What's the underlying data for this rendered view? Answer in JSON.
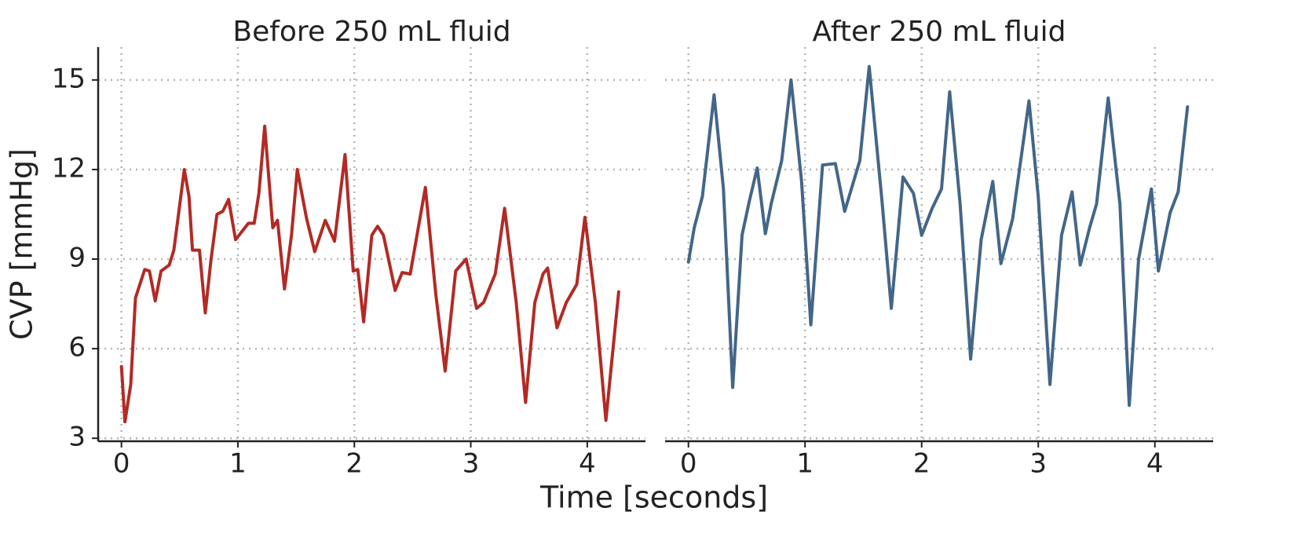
{
  "xlabel": "Time [seconds]",
  "ylabel": "CVP [mmHg]",
  "chart_data": [
    {
      "type": "line",
      "title": "Before 250 mL fluid",
      "color": "#b22a25",
      "grid": true,
      "show_yticklabels": true,
      "xlim": [
        -0.2,
        4.5
      ],
      "ylim": [
        2.9,
        16.1
      ],
      "xticks": [
        0,
        1,
        2,
        3,
        4
      ],
      "yticks": [
        3,
        6,
        9,
        12,
        15
      ],
      "x": [
        0,
        0.03,
        0.08,
        0.12,
        0.2,
        0.24,
        0.29,
        0.34,
        0.41,
        0.45,
        0.54,
        0.58,
        0.61,
        0.67,
        0.72,
        0.77,
        0.82,
        0.87,
        0.92,
        0.98,
        1.09,
        1.14,
        1.18,
        1.23,
        1.3,
        1.34,
        1.4,
        1.46,
        1.51,
        1.59,
        1.66,
        1.75,
        1.83,
        1.92,
        1.99,
        2.03,
        2.08,
        2.15,
        2.2,
        2.25,
        2.35,
        2.41,
        2.48,
        2.61,
        2.7,
        2.78,
        2.87,
        2.96,
        3.05,
        3.11,
        3.21,
        3.29,
        3.39,
        3.47,
        3.55,
        3.62,
        3.66,
        3.74,
        3.82,
        3.91,
        3.98,
        4.07,
        4.16,
        4.27
      ],
      "values": [
        5.4,
        3.55,
        4.8,
        7.7,
        8.65,
        8.6,
        7.6,
        8.6,
        8.8,
        9.3,
        12.0,
        11.1,
        9.3,
        9.3,
        7.2,
        9.0,
        10.5,
        10.6,
        11.0,
        9.65,
        10.2,
        10.2,
        11.2,
        13.45,
        10.05,
        10.3,
        8.0,
        9.8,
        12.0,
        10.35,
        9.25,
        10.3,
        9.6,
        12.5,
        8.6,
        8.65,
        6.9,
        9.8,
        10.1,
        9.8,
        7.95,
        8.55,
        8.5,
        11.4,
        7.8,
        5.25,
        8.6,
        9.0,
        7.35,
        7.55,
        8.5,
        10.7,
        7.55,
        4.2,
        7.55,
        8.5,
        8.7,
        6.7,
        7.55,
        8.15,
        10.4,
        7.55,
        3.6,
        7.9
      ]
    },
    {
      "type": "line",
      "title": "After 250 mL fluid",
      "color": "#436688",
      "grid": true,
      "show_yticklabels": false,
      "xlim": [
        -0.2,
        4.5
      ],
      "ylim": [
        2.9,
        16.1
      ],
      "xticks": [
        0,
        1,
        2,
        3,
        4
      ],
      "yticks": [
        3,
        6,
        9,
        12,
        15
      ],
      "x": [
        0,
        0.05,
        0.12,
        0.22,
        0.3,
        0.38,
        0.46,
        0.52,
        0.59,
        0.66,
        0.71,
        0.8,
        0.88,
        0.97,
        1.05,
        1.15,
        1.26,
        1.34,
        1.47,
        1.55,
        1.66,
        1.74,
        1.84,
        1.93,
        2.0,
        2.09,
        2.17,
        2.24,
        2.33,
        2.42,
        2.51,
        2.61,
        2.68,
        2.78,
        2.92,
        3.0,
        3.1,
        3.2,
        3.29,
        3.36,
        3.44,
        3.5,
        3.6,
        3.7,
        3.78,
        3.86,
        3.97,
        4.03,
        4.13,
        4.2,
        4.28
      ],
      "values": [
        8.9,
        10.05,
        11.1,
        14.5,
        11.35,
        4.7,
        9.8,
        10.9,
        12.05,
        9.85,
        10.85,
        12.3,
        15.0,
        11.6,
        6.8,
        12.15,
        12.2,
        10.6,
        12.3,
        15.45,
        10.95,
        7.35,
        11.75,
        11.2,
        9.8,
        10.7,
        11.35,
        14.6,
        10.85,
        5.65,
        9.65,
        11.6,
        8.85,
        10.35,
        14.3,
        11.1,
        4.8,
        9.8,
        11.25,
        8.8,
        10.05,
        10.85,
        14.4,
        10.85,
        4.1,
        9.0,
        11.35,
        8.6,
        10.55,
        11.25,
        14.1
      ]
    }
  ]
}
